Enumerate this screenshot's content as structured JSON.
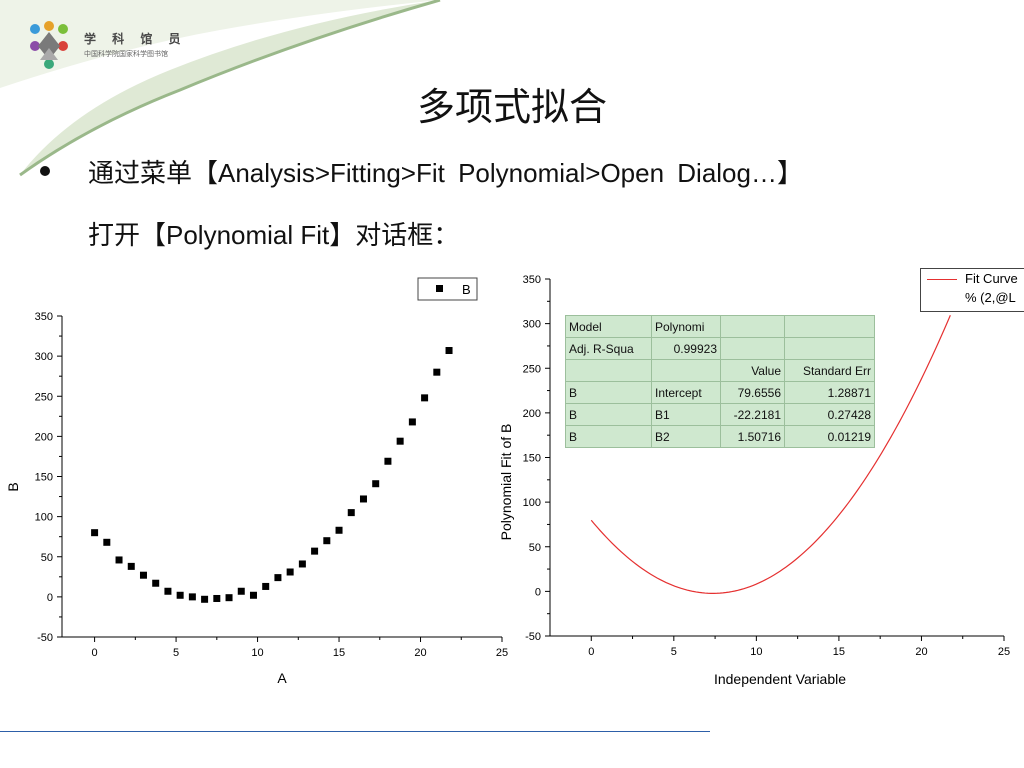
{
  "logo": {
    "name": "学 科 馆 员",
    "subtitle": "中国科学院国家科学图书馆"
  },
  "slide": {
    "title": "多项式拟合",
    "bullet_line1": "通过菜单【Analysis>Fitting>Fit Polynomial>Open Dialog…】",
    "bullet_line2": "打开【Polynomial Fit】对话框："
  },
  "colors": {
    "accent_green": "#8aa978",
    "fit_curve": "#e53030",
    "table_bg": "#cfe8cf",
    "rule": "#2d5fa8"
  },
  "chart_data": [
    {
      "type": "scatter",
      "xlabel": "A",
      "ylabel": "B",
      "xlim": [
        -2,
        25
      ],
      "ylim": [
        -50,
        350
      ],
      "xticks": [
        "0",
        "5",
        "10",
        "15",
        "20",
        "25"
      ],
      "yticks": [
        "-50",
        "0",
        "50",
        "100",
        "150",
        "200",
        "250",
        "300",
        "350"
      ],
      "legend": {
        "label": "B",
        "placement": "top-right"
      },
      "series": [
        {
          "name": "B",
          "x": [
            0,
            0.75,
            1.5,
            2.25,
            3,
            3.75,
            4.5,
            5.25,
            6,
            6.75,
            7.5,
            8.25,
            9,
            9.75,
            10.5,
            11.25,
            12,
            12.75,
            13.5,
            14.25,
            15,
            15.75,
            16.5,
            17.25,
            18,
            18.75,
            19.5,
            20.25,
            21,
            21.75
          ],
          "y": [
            80,
            68,
            46,
            38,
            27,
            17,
            7,
            2,
            0,
            -3,
            -2,
            -1,
            7,
            2,
            13,
            24,
            31,
            41,
            57,
            70,
            83,
            105,
            122,
            141,
            169,
            194,
            218,
            248,
            280,
            307
          ]
        }
      ]
    },
    {
      "type": "line",
      "xlabel": "Independent Variable",
      "ylabel": "Polynomial Fit of B",
      "xlim": [
        -2.5,
        25
      ],
      "ylim": [
        -50,
        350
      ],
      "xticks": [
        "0",
        "5",
        "10",
        "15",
        "20",
        "25"
      ],
      "yticks": [
        "-50",
        "0",
        "50",
        "100",
        "150",
        "200",
        "250",
        "300",
        "350"
      ],
      "legend": {
        "line1": "Fit Curve",
        "line2": "% (2,@L",
        "placement": "top-right"
      },
      "fit": {
        "intercept": 79.6556,
        "b1": -22.2181,
        "b2": 1.50716,
        "x_range": [
          0,
          21.75
        ]
      },
      "table": [
        [
          "Model",
          "Polynomi",
          "",
          ""
        ],
        [
          "Adj. R-Squa",
          "0.99923",
          "",
          ""
        ],
        [
          "",
          "",
          "Value",
          "Standard Err"
        ],
        [
          "B",
          "Intercept",
          "79.6556",
          "1.28871"
        ],
        [
          "B",
          "B1",
          "-22.2181",
          "0.27428"
        ],
        [
          "B",
          "B2",
          "1.50716",
          "0.01219"
        ]
      ]
    }
  ]
}
